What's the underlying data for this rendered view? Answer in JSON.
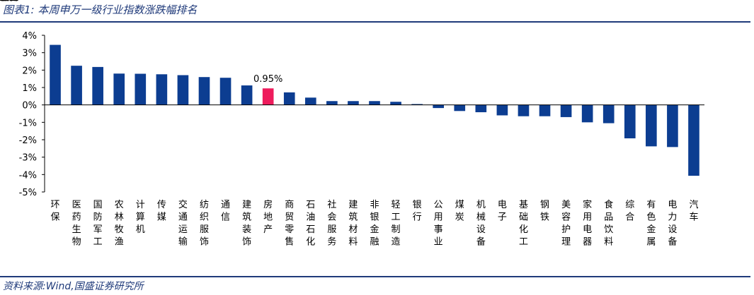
{
  "figure": {
    "title": "图表1:  本周申万一级行业指数涨跌幅排名",
    "source": "资料来源:Wind,国盛证券研究所"
  },
  "colors": {
    "bar": "#0c3d91",
    "highlight": "#ee1c5c",
    "rule": "#1f3a7a",
    "axis": "#000000"
  },
  "chart_data": {
    "type": "bar",
    "ylim": [
      -5,
      4
    ],
    "yticks": [
      "4%",
      "3%",
      "2%",
      "1%",
      "0%",
      "-1%",
      "-2%",
      "-3%",
      "-4%",
      "-5%"
    ],
    "categories": [
      "环保",
      "医药生物",
      "国防军工",
      "农林牧渔",
      "计算机",
      "传媒",
      "交通运输",
      "纺织服饰",
      "通信",
      "建筑装饰",
      "房地产",
      "商贸零售",
      "石油石化",
      "社会服务",
      "建筑材料",
      "非银金融",
      "轻工制造",
      "银行",
      "公用事业",
      "煤炭",
      "机械设备",
      "电子",
      "基础化工",
      "钢铁",
      "美容护理",
      "家用电器",
      "食品饮料",
      "综合",
      "有色金属",
      "电力设备",
      "汽车"
    ],
    "values": [
      3.45,
      2.25,
      2.18,
      1.8,
      1.79,
      1.76,
      1.71,
      1.6,
      1.56,
      1.12,
      0.95,
      0.72,
      0.42,
      0.22,
      0.22,
      0.22,
      0.18,
      0.05,
      -0.18,
      -0.35,
      -0.42,
      -0.6,
      -0.65,
      -0.65,
      -0.7,
      -1.0,
      -1.05,
      -1.92,
      -2.38,
      -2.42,
      -4.07
    ],
    "highlight_index": 10,
    "data_labels": [
      {
        "index": 10,
        "text": "0.95%"
      }
    ],
    "grid": false,
    "legend": "none"
  }
}
